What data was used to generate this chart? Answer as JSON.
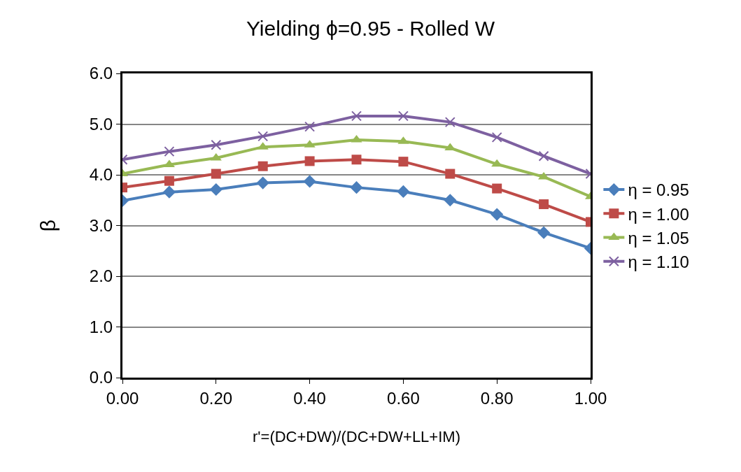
{
  "chart_data": {
    "type": "line",
    "title": "Yielding ϕ=0.95 - Rolled W",
    "xlabel": "r'=(DC+DW)/(DC+DW+LL+IM)",
    "ylabel": "β",
    "x": [
      0,
      0.1,
      0.2,
      0.3,
      0.4,
      0.5,
      0.6,
      0.7,
      0.8,
      0.9,
      1.0
    ],
    "xlim": [
      0,
      1
    ],
    "xticks": [
      {
        "value": 0,
        "label": "0.00"
      },
      {
        "value": 0.2,
        "label": "0.20"
      },
      {
        "value": 0.4,
        "label": "0.40"
      },
      {
        "value": 0.6,
        "label": "0.60"
      },
      {
        "value": 0.8,
        "label": "0.80"
      },
      {
        "value": 1,
        "label": "1.00"
      }
    ],
    "ylim": [
      0,
      6
    ],
    "yticks": [
      {
        "value": 0,
        "label": "0.0"
      },
      {
        "value": 1,
        "label": "1.0"
      },
      {
        "value": 2,
        "label": "2.0"
      },
      {
        "value": 3,
        "label": "3.0"
      },
      {
        "value": 4,
        "label": "4.0"
      },
      {
        "value": 5,
        "label": "5.0"
      },
      {
        "value": 6,
        "label": "6.0"
      }
    ],
    "grid": "y",
    "legend": "right",
    "line_style": "solid",
    "series": [
      {
        "name": "η = 0.95",
        "color": "#4a7ebb",
        "marker": "diamond",
        "values": [
          3.49,
          3.66,
          3.71,
          3.84,
          3.87,
          3.75,
          3.67,
          3.5,
          3.22,
          2.86,
          2.55
        ]
      },
      {
        "name": "η = 1.00",
        "color": "#be4b48",
        "marker": "square",
        "values": [
          3.75,
          3.88,
          4.02,
          4.17,
          4.27,
          4.3,
          4.26,
          4.02,
          3.73,
          3.42,
          3.07
        ]
      },
      {
        "name": "η = 1.05",
        "color": "#98b954",
        "marker": "triangle",
        "values": [
          4.02,
          4.2,
          4.33,
          4.55,
          4.59,
          4.69,
          4.66,
          4.53,
          4.21,
          3.96,
          3.57
        ]
      },
      {
        "name": "η = 1.10",
        "color": "#7d60a0",
        "marker": "cross",
        "values": [
          4.3,
          4.46,
          4.59,
          4.76,
          4.95,
          5.16,
          5.16,
          5.04,
          4.74,
          4.37,
          4.02
        ]
      }
    ]
  }
}
